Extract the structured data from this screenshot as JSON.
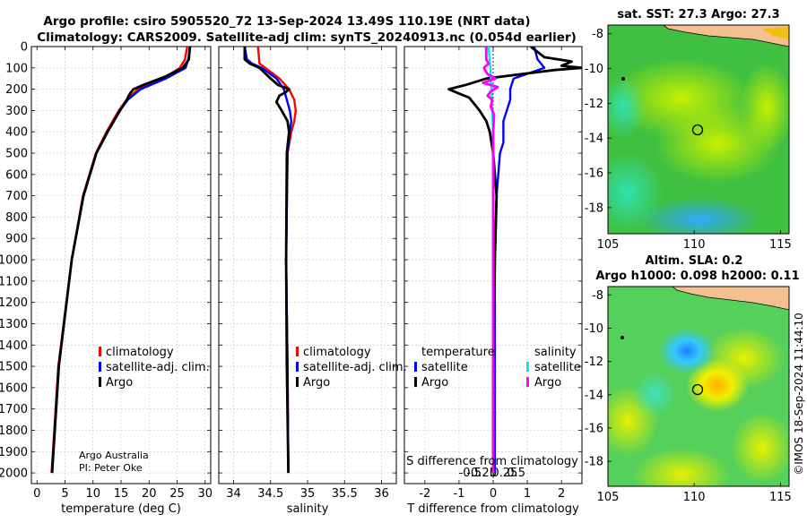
{
  "header": {
    "title_line1": "Argo profile: csiro 5905520_72 13-Sep-2024 13.49S 110.19E (NRT data)",
    "title_line2": "Climatology: CARS2009. Satellite-adj clim: synTS_20240913.nc (0.054d earlier)"
  },
  "credits": {
    "line1": "Argo Australia",
    "line2": "PI: Peter Oke"
  },
  "timestamp": "©IMOS 18-Sep-2024 11:44:10",
  "colors": {
    "climatology": "#ff0000",
    "satellite": "#0000ff",
    "argo": "#000000",
    "sal_satellite": "#00e5ee",
    "sal_argo": "#ff00ff"
  },
  "chart_data": [
    {
      "type": "line",
      "title": "",
      "xlabel": "temperature (deg C)",
      "ylabel": "",
      "xlim": [
        -1,
        31
      ],
      "ylim": [
        2050,
        0
      ],
      "xticks": [
        0,
        5,
        10,
        15,
        20,
        25,
        30
      ],
      "yticks": [
        0,
        100,
        200,
        300,
        400,
        500,
        600,
        700,
        800,
        900,
        1000,
        1100,
        1200,
        1300,
        1400,
        1500,
        1600,
        1700,
        1800,
        1900,
        2000
      ],
      "legend": [
        "climatology",
        "satellite-adj. clim.",
        "Argo"
      ],
      "series": [
        {
          "name": "climatology",
          "depth": [
            0,
            60,
            100,
            150,
            200,
            250,
            300,
            400,
            500,
            700,
            1000,
            1500,
            2000
          ],
          "values": [
            26.8,
            26.4,
            25.5,
            22.5,
            18,
            16,
            14.6,
            12.4,
            10.5,
            8.2,
            6.2,
            3.8,
            2.6
          ]
        },
        {
          "name": "satellite-adj. clim.",
          "depth": [
            0,
            60,
            100,
            150,
            200,
            250,
            300,
            400,
            500,
            700,
            1000,
            1500,
            2000
          ],
          "values": [
            27.3,
            27,
            26.5,
            23,
            18.5,
            16.2,
            14.8,
            12.6,
            10.6,
            8.3,
            6.2,
            3.9,
            2.7
          ]
        },
        {
          "name": "Argo",
          "depth": [
            0,
            60,
            100,
            140,
            180,
            200,
            220,
            250,
            300,
            400,
            500,
            700,
            1000,
            1500,
            2000
          ],
          "values": [
            27.3,
            27.1,
            26,
            23,
            19,
            17.2,
            16.6,
            16,
            14.8,
            12.6,
            10.6,
            8.3,
            6.2,
            3.9,
            2.7
          ]
        }
      ]
    },
    {
      "type": "line",
      "xlabel": "salinity",
      "xlim": [
        33.8,
        36.2
      ],
      "ylim": [
        2050,
        0
      ],
      "xticks": [
        34,
        34.5,
        35,
        35.5,
        36
      ],
      "legend": [
        "climatology",
        "satellite-adj. clim.",
        "Argo"
      ],
      "series": [
        {
          "name": "climatology",
          "depth": [
            0,
            80,
            100,
            150,
            200,
            250,
            300,
            350,
            400,
            500,
            1000,
            1500,
            2000
          ],
          "values": [
            34.33,
            34.35,
            34.43,
            34.62,
            34.75,
            34.82,
            34.84,
            34.82,
            34.78,
            34.73,
            34.71,
            34.73,
            34.74
          ]
        },
        {
          "name": "satellite-adj. clim.",
          "depth": [
            0,
            60,
            80,
            100,
            150,
            200,
            250,
            300,
            350,
            400,
            500,
            1000,
            1500,
            2000
          ],
          "values": [
            34.15,
            34.18,
            34.25,
            34.38,
            34.58,
            34.68,
            34.72,
            34.76,
            34.78,
            34.76,
            34.73,
            34.71,
            34.73,
            34.74
          ]
        },
        {
          "name": "Argo",
          "depth": [
            0,
            60,
            80,
            100,
            150,
            180,
            200,
            215,
            230,
            260,
            300,
            350,
            400,
            500,
            1000,
            1500,
            2000
          ],
          "values": [
            34.15,
            34.15,
            34.22,
            34.35,
            34.5,
            34.6,
            34.75,
            34.7,
            34.62,
            34.58,
            34.65,
            34.73,
            34.75,
            34.72,
            34.71,
            34.72,
            34.74
          ]
        }
      ]
    },
    {
      "type": "line",
      "title_temperature": "temperature",
      "title_salinity": "salinity",
      "xlabel_bottom": "T difference from climatology",
      "xlabel_top": "S difference from climatology",
      "xlim": [
        -2.6,
        2.6
      ],
      "ylim": [
        2050,
        0
      ],
      "xticks": [
        -2,
        -1,
        0,
        1,
        2
      ],
      "xticks_top": [
        -0.5,
        -0.25,
        0,
        0.25,
        0.5
      ],
      "xticks_top_labels": [
        "-0.5",
        "-0.25",
        "0",
        "0.25",
        "0.5"
      ],
      "legend_temperature": [
        "satellite",
        "Argo"
      ],
      "legend_salinity": [
        "satellite",
        "Argo"
      ],
      "series": [
        {
          "name": "T satellite",
          "depth": [
            0,
            60,
            100,
            150,
            200,
            250,
            300,
            350,
            400,
            450,
            500,
            700,
            1000,
            1500,
            2000
          ],
          "values": [
            1.2,
            1.3,
            1.5,
            0.6,
            0.5,
            0.5,
            0.4,
            0.3,
            0.3,
            0.3,
            0.2,
            0.1,
            0.05,
            0.05,
            0.05
          ]
        },
        {
          "name": "T Argo",
          "depth": [
            0,
            50,
            70,
            90,
            100,
            110,
            130,
            150,
            180,
            200,
            220,
            240,
            260,
            300,
            350,
            400,
            500,
            700,
            1000,
            1500,
            2000
          ],
          "values": [
            1.1,
            1.5,
            2.3,
            2.0,
            2.6,
            1.8,
            0.8,
            -0.2,
            -0.8,
            -1.3,
            -1.0,
            -0.7,
            -0.6,
            -0.4,
            -0.2,
            -0.1,
            0,
            0.1,
            0.05,
            0,
            0
          ]
        },
        {
          "name": "S satellite",
          "depth": [
            0,
            100,
            150,
            200,
            250,
            300,
            400,
            500,
            1000,
            1500,
            2000
          ],
          "values": [
            -0.1,
            -0.06,
            -0.05,
            -0.04,
            -0.03,
            -0.02,
            0,
            0,
            0,
            0,
            0
          ]
        },
        {
          "name": "S Argo",
          "depth": [
            0,
            60,
            80,
            100,
            130,
            150,
            170,
            190,
            210,
            230,
            250,
            280,
            320,
            400,
            500,
            1000,
            1500,
            2000
          ],
          "values": [
            -0.15,
            -0.15,
            -0.1,
            -0.2,
            -0.12,
            0.05,
            -0.22,
            0.1,
            -0.05,
            -0.12,
            -0.02,
            -0.05,
            0.02,
            0,
            0,
            0,
            0,
            0
          ]
        }
      ]
    },
    {
      "type": "heatmap",
      "title": "sat. SST: 27.3 Argo: 27.3",
      "xlim": [
        105,
        115.5
      ],
      "ylim": [
        -19.5,
        -7.5
      ],
      "xticks": [
        105,
        110,
        115
      ],
      "yticks": [
        -8,
        -10,
        -12,
        -14,
        -16,
        -18
      ],
      "marker": {
        "lon": 110.19,
        "lat": -13.49
      }
    },
    {
      "type": "heatmap",
      "title_line1": "Altim. SLA: 0.2",
      "title_line2": "Argo h1000: 0.098 h2000: 0.11",
      "xlim": [
        105,
        115.5
      ],
      "ylim": [
        -19.5,
        -7.5
      ],
      "xticks": [
        105,
        110,
        115
      ],
      "yticks": [
        -8,
        -10,
        -12,
        -14,
        -16,
        -18
      ],
      "marker": {
        "lon": 110.19,
        "lat": -13.49
      }
    }
  ]
}
